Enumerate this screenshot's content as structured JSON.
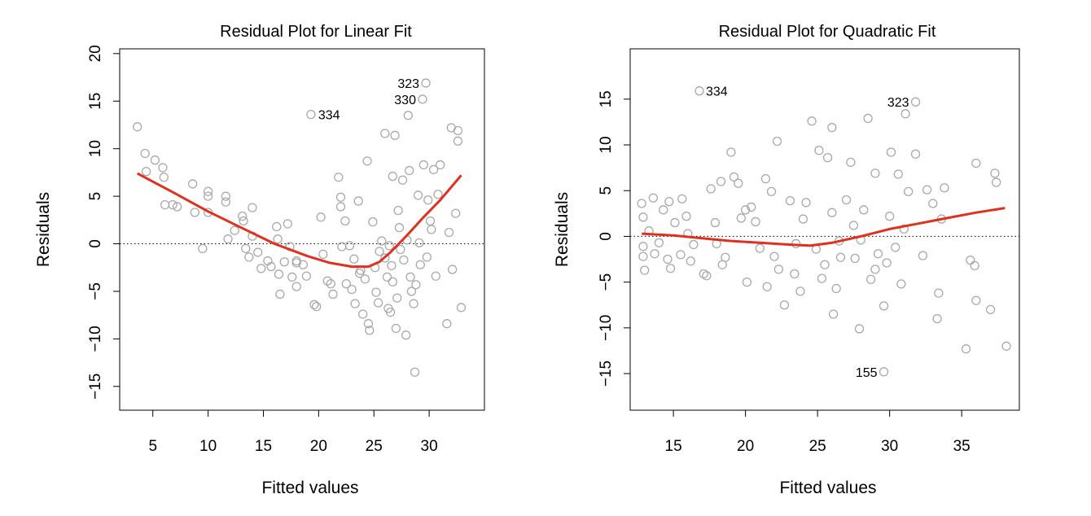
{
  "chart_data": [
    {
      "type": "scatter",
      "title": "Residual Plot for Linear Fit",
      "xlabel": "Fitted values",
      "ylabel": "Residuals",
      "xlim": [
        2,
        35
      ],
      "ylim": [
        -17.5,
        20.5
      ],
      "xticks": [
        5,
        10,
        15,
        20,
        25,
        30
      ],
      "yticks": [
        -15,
        -10,
        -5,
        0,
        5,
        10,
        15,
        20
      ],
      "reference_line": {
        "y": 0,
        "style": "dotted"
      },
      "point_color": "#a9a9a9",
      "smooth_color": "#e0301e",
      "points": [
        [
          3.6,
          12.3
        ],
        [
          4.3,
          9.5
        ],
        [
          4.4,
          7.6
        ],
        [
          5.2,
          8.8
        ],
        [
          5.9,
          8
        ],
        [
          6,
          7
        ],
        [
          6.1,
          4.1
        ],
        [
          6.8,
          4.1
        ],
        [
          7.2,
          3.9
        ],
        [
          8.6,
          6.3
        ],
        [
          8.8,
          3.3
        ],
        [
          9.5,
          -0.5
        ],
        [
          10,
          5.5
        ],
        [
          10,
          5
        ],
        [
          10,
          3.3
        ],
        [
          11.6,
          5
        ],
        [
          11.6,
          4.4
        ],
        [
          11.8,
          0.5
        ],
        [
          12.4,
          1.4
        ],
        [
          13.1,
          2.9
        ],
        [
          13.2,
          2.4
        ],
        [
          13.4,
          -0.5
        ],
        [
          13.7,
          -1.4
        ],
        [
          14,
          3.8
        ],
        [
          14,
          0.8
        ],
        [
          14.5,
          -0.9
        ],
        [
          14.8,
          -2.6
        ],
        [
          15.4,
          -1.8
        ],
        [
          15.7,
          -2.4
        ],
        [
          16.2,
          1.8
        ],
        [
          16.3,
          0.5
        ],
        [
          16.4,
          -3.2
        ],
        [
          16.5,
          -5.3
        ],
        [
          16.9,
          -1.9
        ],
        [
          17.2,
          2.1
        ],
        [
          17.4,
          -0.3
        ],
        [
          17.6,
          -3.5
        ],
        [
          18,
          -2
        ],
        [
          18,
          -1.8
        ],
        [
          18,
          -4.5
        ],
        [
          18.6,
          -2.2
        ],
        [
          18.9,
          -3.4
        ],
        [
          19.3,
          13.6
        ],
        [
          19.6,
          -6.4
        ],
        [
          19.8,
          -6.6
        ],
        [
          20.2,
          2.8
        ],
        [
          20.4,
          -1.1
        ],
        [
          20.8,
          -3.9
        ],
        [
          21.1,
          -4.2
        ],
        [
          21.3,
          -5.3
        ],
        [
          21.8,
          7
        ],
        [
          22,
          4.9
        ],
        [
          22,
          3.9
        ],
        [
          22.1,
          -0.3
        ],
        [
          22.5,
          -4.2
        ],
        [
          22.8,
          -0.2
        ],
        [
          23,
          -4.8
        ],
        [
          23.3,
          -6.3
        ],
        [
          23.6,
          4.5
        ],
        [
          23.8,
          -2.8
        ],
        [
          24,
          -7.4
        ],
        [
          24.4,
          8.7
        ],
        [
          24.5,
          -8.4
        ],
        [
          24.6,
          -9.1
        ],
        [
          24.9,
          2.3
        ],
        [
          25.1,
          -2.5
        ],
        [
          25.4,
          -6.2
        ],
        [
          25.7,
          0.3
        ],
        [
          26,
          11.6
        ],
        [
          26.2,
          -3.5
        ],
        [
          26.3,
          -6.8
        ],
        [
          26.5,
          -7.2
        ],
        [
          26.7,
          7.1
        ],
        [
          26.7,
          -4
        ],
        [
          26.9,
          11.4
        ],
        [
          27,
          -8.9
        ],
        [
          27.2,
          3.5
        ],
        [
          27.3,
          1.7
        ],
        [
          27.6,
          6.7
        ],
        [
          27.7,
          -1.7
        ],
        [
          27.9,
          -9.6
        ],
        [
          28,
          0.4
        ],
        [
          28.1,
          13.5
        ],
        [
          28.2,
          7.7
        ],
        [
          28.4,
          -5
        ],
        [
          28.6,
          -6.3
        ],
        [
          28.7,
          -13.5
        ],
        [
          29,
          5.1
        ],
        [
          29.2,
          -2.2
        ],
        [
          29.4,
          15.2
        ],
        [
          29.5,
          8.3
        ],
        [
          29.7,
          16.9
        ],
        [
          29.9,
          4.6
        ],
        [
          30.2,
          1.5
        ],
        [
          30.4,
          7.8
        ],
        [
          30.6,
          -3.4
        ],
        [
          30.8,
          5.2
        ],
        [
          31,
          8.3
        ],
        [
          31.6,
          -8.4
        ],
        [
          31.8,
          1.2
        ],
        [
          32,
          12.2
        ],
        [
          32.1,
          -2.7
        ],
        [
          32.4,
          3.2
        ],
        [
          32.6,
          11.9
        ],
        [
          32.6,
          10.8
        ],
        [
          32.9,
          -6.7
        ],
        [
          25.5,
          -0.8
        ],
        [
          26,
          -1.5
        ],
        [
          26.6,
          -2.3
        ],
        [
          27.4,
          -0.6
        ],
        [
          28.3,
          -3.5
        ],
        [
          29.1,
          0.1
        ],
        [
          29.8,
          -1.4
        ],
        [
          30.1,
          2.4
        ],
        [
          23.2,
          -1.6
        ],
        [
          24.2,
          -3.7
        ],
        [
          25.2,
          -5.1
        ],
        [
          27.1,
          -5.7
        ],
        [
          28.8,
          -4.3
        ],
        [
          26.4,
          -0.2
        ],
        [
          22.4,
          2.4
        ],
        [
          23.7,
          -3.1
        ]
      ],
      "smooth": [
        [
          3.6,
          7.4
        ],
        [
          7,
          5.3
        ],
        [
          10,
          3.4
        ],
        [
          13,
          1.7
        ],
        [
          16,
          0
        ],
        [
          19,
          -1.3
        ],
        [
          21,
          -2
        ],
        [
          23,
          -2.4
        ],
        [
          24.5,
          -2.4
        ],
        [
          25.5,
          -1.9
        ],
        [
          26.5,
          -0.9
        ],
        [
          28,
          0.9
        ],
        [
          29.5,
          2.8
        ],
        [
          31,
          4.6
        ],
        [
          32.9,
          7.2
        ]
      ],
      "annotations": [
        {
          "label": "323",
          "x": 29.7,
          "y": 16.9
        },
        {
          "label": "330",
          "x": 29.4,
          "y": 15.2
        },
        {
          "label": "334",
          "x": 19.3,
          "y": 13.6
        }
      ]
    },
    {
      "type": "scatter",
      "title": "Residual Plot for Quadratic Fit",
      "xlabel": "Fitted values",
      "ylabel": "Residuals",
      "xlim": [
        12,
        39
      ],
      "ylim": [
        -19,
        20.5
      ],
      "xticks": [
        15,
        20,
        25,
        30,
        35
      ],
      "yticks": [
        -15,
        -10,
        -5,
        0,
        5,
        10,
        15
      ],
      "reference_line": {
        "y": 0,
        "style": "dotted"
      },
      "point_color": "#a9a9a9",
      "smooth_color": "#e0301e",
      "points": [
        [
          12.8,
          3.6
        ],
        [
          12.9,
          2.1
        ],
        [
          12.9,
          -1.1
        ],
        [
          12.9,
          -2.2
        ],
        [
          13,
          -3.7
        ],
        [
          13.3,
          0.6
        ],
        [
          13.6,
          4.2
        ],
        [
          13.7,
          -1.9
        ],
        [
          14,
          -0.7
        ],
        [
          14.3,
          2.9
        ],
        [
          14.6,
          -2.5
        ],
        [
          14.7,
          3.8
        ],
        [
          14.8,
          -3.5
        ],
        [
          15.1,
          1.5
        ],
        [
          15.5,
          -2
        ],
        [
          15.6,
          4.1
        ],
        [
          15.9,
          2.2
        ],
        [
          16.2,
          -2.7
        ],
        [
          16.4,
          -0.9
        ],
        [
          16.8,
          15.9
        ],
        [
          17.1,
          -4.1
        ],
        [
          17.3,
          -4.3
        ],
        [
          17.6,
          5.2
        ],
        [
          17.9,
          1.5
        ],
        [
          18.3,
          6
        ],
        [
          18.4,
          -3.1
        ],
        [
          18.6,
          -2.3
        ],
        [
          19,
          9.2
        ],
        [
          19.2,
          6.5
        ],
        [
          19.5,
          5.8
        ],
        [
          19.7,
          2
        ],
        [
          20.1,
          -5
        ],
        [
          20.4,
          3.2
        ],
        [
          20.7,
          1.6
        ],
        [
          21,
          -1.3
        ],
        [
          21.4,
          6.3
        ],
        [
          21.5,
          -5.5
        ],
        [
          21.8,
          4.9
        ],
        [
          22.2,
          10.4
        ],
        [
          22.3,
          -3.6
        ],
        [
          22.7,
          -7.5
        ],
        [
          23.1,
          3.9
        ],
        [
          23.4,
          -4.1
        ],
        [
          23.8,
          -6
        ],
        [
          24.2,
          3.7
        ],
        [
          24.6,
          12.6
        ],
        [
          24.9,
          -1.4
        ],
        [
          25.1,
          9.4
        ],
        [
          25.3,
          -4.6
        ],
        [
          25.7,
          8.6
        ],
        [
          26,
          11.9
        ],
        [
          26.1,
          -8.5
        ],
        [
          26.3,
          -5.7
        ],
        [
          26.6,
          -2.3
        ],
        [
          27,
          4
        ],
        [
          27.3,
          8.1
        ],
        [
          27.6,
          -2.4
        ],
        [
          27.9,
          -10.1
        ],
        [
          28.2,
          2.9
        ],
        [
          28.5,
          12.9
        ],
        [
          28.7,
          -4.7
        ],
        [
          29,
          6.9
        ],
        [
          29.2,
          -1.9
        ],
        [
          29.6,
          -7.6
        ],
        [
          29.6,
          -14.8
        ],
        [
          29.8,
          -2.9
        ],
        [
          30.1,
          9.2
        ],
        [
          30.4,
          -1.2
        ],
        [
          30.6,
          6.8
        ],
        [
          30.8,
          -5.2
        ],
        [
          31.1,
          13.4
        ],
        [
          31.3,
          4.9
        ],
        [
          31.8,
          14.7
        ],
        [
          31.8,
          9
        ],
        [
          32.3,
          -2.1
        ],
        [
          32.6,
          5.1
        ],
        [
          33,
          3.6
        ],
        [
          33.3,
          -9
        ],
        [
          33.4,
          -6.2
        ],
        [
          33.6,
          1.9
        ],
        [
          33.8,
          5.3
        ],
        [
          35.3,
          -12.3
        ],
        [
          35.6,
          -2.6
        ],
        [
          35.9,
          -3.2
        ],
        [
          36,
          -7
        ],
        [
          36,
          8
        ],
        [
          37,
          -8
        ],
        [
          37.3,
          6.9
        ],
        [
          37.4,
          5.9
        ],
        [
          38.1,
          -12
        ],
        [
          26.5,
          -0.5
        ],
        [
          27.5,
          1.2
        ],
        [
          25.5,
          -3.1
        ],
        [
          23.5,
          -0.8
        ],
        [
          22,
          -2.2
        ],
        [
          28,
          -0.4
        ],
        [
          30,
          2.2
        ],
        [
          31,
          0.8
        ],
        [
          24,
          1.9
        ],
        [
          26,
          2.6
        ],
        [
          29,
          -3.6
        ],
        [
          20,
          2.9
        ],
        [
          18,
          -0.8
        ],
        [
          16,
          0.3
        ]
      ],
      "smooth": [
        [
          12.8,
          0.3
        ],
        [
          15,
          0.1
        ],
        [
          17,
          -0.2
        ],
        [
          19,
          -0.5
        ],
        [
          21,
          -0.7
        ],
        [
          23,
          -0.9
        ],
        [
          24.5,
          -1
        ],
        [
          26,
          -0.7
        ],
        [
          28,
          0
        ],
        [
          30,
          0.8
        ],
        [
          32,
          1.4
        ],
        [
          34,
          2
        ],
        [
          36,
          2.6
        ],
        [
          38,
          3.1
        ]
      ],
      "annotations": [
        {
          "label": "334",
          "x": 16.8,
          "y": 15.9
        },
        {
          "label": "323",
          "x": 31.8,
          "y": 14.7
        },
        {
          "label": "155",
          "x": 29.6,
          "y": -14.8
        }
      ]
    }
  ]
}
